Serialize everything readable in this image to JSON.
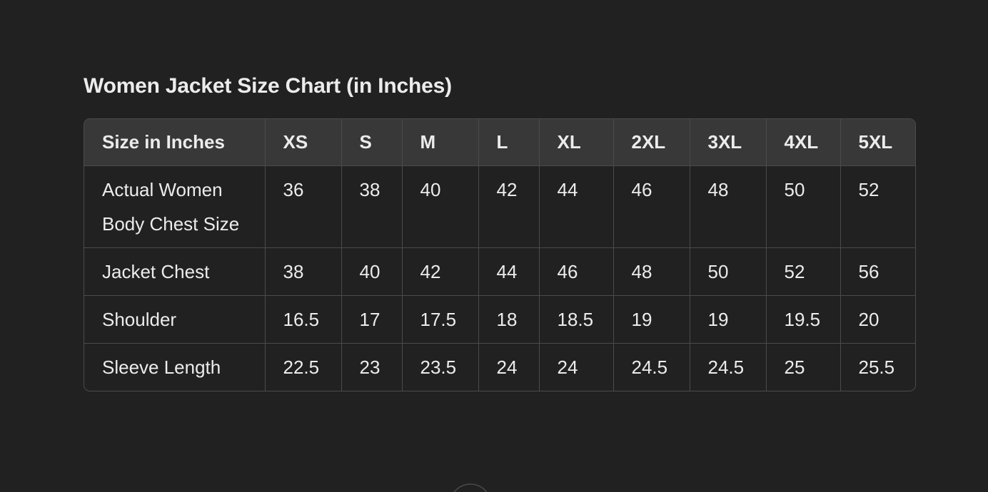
{
  "title": "Women Jacket Size Chart (in Inches)",
  "table": {
    "headers": [
      "Size in Inches",
      "XS",
      "S",
      "M",
      "L",
      "XL",
      "2XL",
      "3XL",
      "4XL",
      "5XL"
    ],
    "rows": [
      [
        "Actual Women Body Chest Size",
        "36",
        "38",
        "40",
        "42",
        "44",
        "46",
        "48",
        "50",
        "52"
      ],
      [
        "Jacket Chest",
        "38",
        "40",
        "42",
        "44",
        "46",
        "48",
        "50",
        "52",
        "56"
      ],
      [
        "Shoulder",
        "16.5",
        "17",
        "17.5",
        "18",
        "18.5",
        "19",
        "19",
        "19.5",
        "20"
      ],
      [
        "Sleeve Length",
        "22.5",
        "23",
        "23.5",
        "24",
        "24",
        "24.5",
        "24.5",
        "25",
        "25.5"
      ]
    ]
  },
  "colors": {
    "background": "#212121",
    "header": "#383838",
    "border": "#4b4b4b",
    "text": "#ececec"
  },
  "scroll_button_icon": "arrow-down-icon"
}
